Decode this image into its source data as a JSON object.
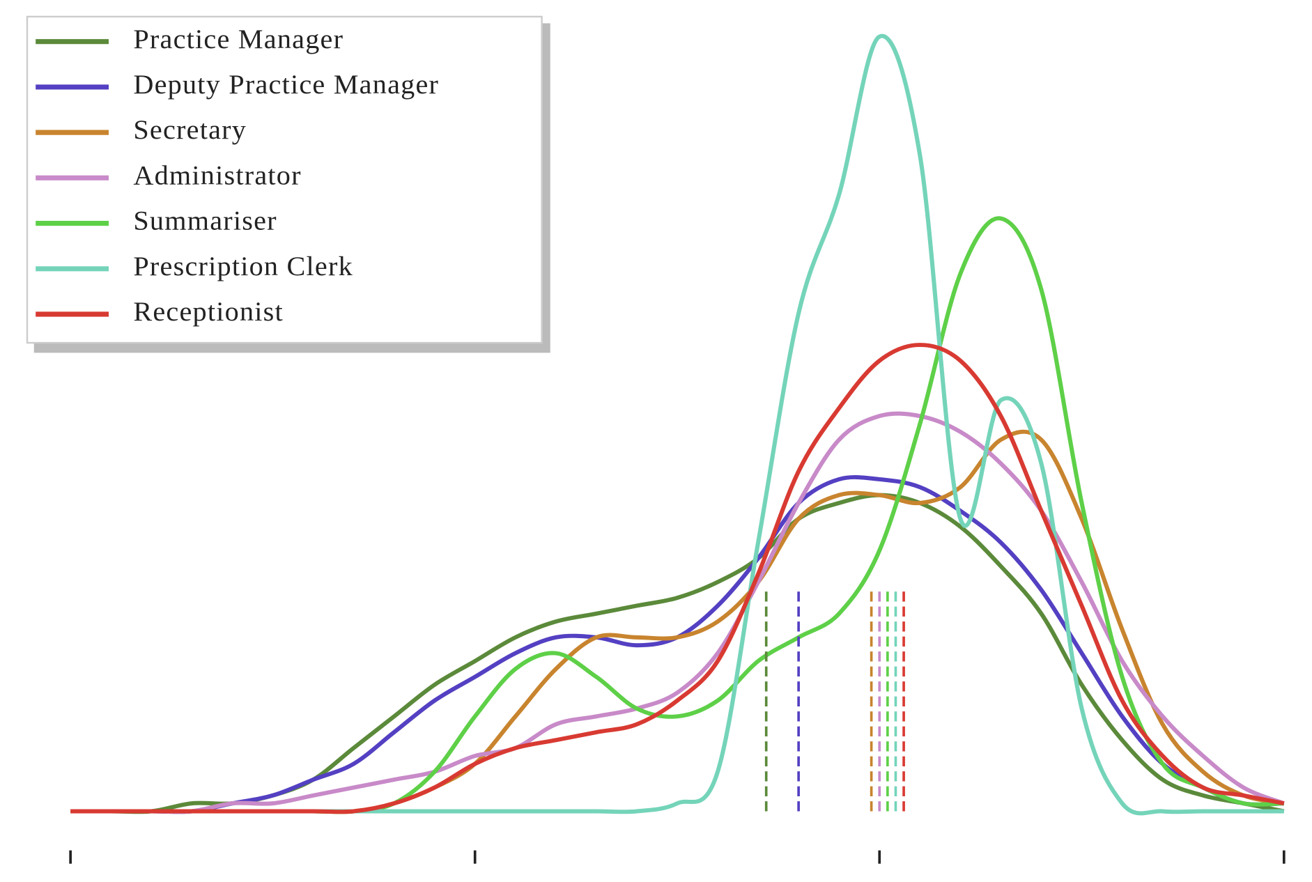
{
  "chart_data": {
    "type": "line",
    "x": [
      0,
      0.1,
      0.2,
      0.3,
      0.4,
      0.5,
      0.6,
      0.7,
      0.8,
      0.9,
      1,
      1.1,
      1.2,
      1.3,
      1.4,
      1.5,
      1.6,
      1.7,
      1.8,
      1.9,
      2,
      2.1,
      2.2,
      2.3,
      2.4,
      2.5,
      2.6,
      2.7,
      2.8,
      2.9,
      3
    ],
    "xlim": [
      0,
      3
    ],
    "xticks": [
      0,
      1,
      2,
      3
    ],
    "ylim": [
      0,
      1
    ],
    "legend": "upper-left",
    "series": [
      {
        "name": "Practice Manager",
        "color": "#5b8a3a",
        "mean": 1.72,
        "values": [
          0,
          0,
          0,
          0.01,
          0.01,
          0.02,
          0.04,
          0.08,
          0.12,
          0.16,
          0.19,
          0.22,
          0.24,
          0.25,
          0.26,
          0.27,
          0.29,
          0.32,
          0.37,
          0.39,
          0.4,
          0.39,
          0.36,
          0.31,
          0.25,
          0.16,
          0.09,
          0.04,
          0.02,
          0.01,
          0
        ]
      },
      {
        "name": "Deputy Practice Manager",
        "color": "#5340c2",
        "mean": 1.8,
        "values": [
          0,
          0,
          0,
          0,
          0.01,
          0.02,
          0.04,
          0.06,
          0.1,
          0.14,
          0.17,
          0.2,
          0.22,
          0.22,
          0.21,
          0.22,
          0.26,
          0.32,
          0.39,
          0.42,
          0.42,
          0.41,
          0.38,
          0.34,
          0.28,
          0.2,
          0.12,
          0.06,
          0.03,
          0.01,
          0.01
        ]
      },
      {
        "name": "Secretary",
        "color": "#c8842e",
        "mean": 1.98,
        "values": [
          0,
          0,
          0,
          0,
          0,
          0,
          0,
          0,
          0.01,
          0.03,
          0.06,
          0.12,
          0.18,
          0.22,
          0.22,
          0.22,
          0.24,
          0.29,
          0.37,
          0.4,
          0.4,
          0.39,
          0.41,
          0.47,
          0.47,
          0.37,
          0.23,
          0.11,
          0.05,
          0.02,
          0.01
        ]
      },
      {
        "name": "Administrator",
        "color": "#c88ac8",
        "mean": 2.0,
        "values": [
          0,
          0,
          0,
          0,
          0.01,
          0.01,
          0.02,
          0.03,
          0.04,
          0.05,
          0.07,
          0.08,
          0.11,
          0.12,
          0.13,
          0.15,
          0.2,
          0.29,
          0.39,
          0.47,
          0.5,
          0.5,
          0.48,
          0.44,
          0.38,
          0.29,
          0.19,
          0.12,
          0.07,
          0.03,
          0.01
        ]
      },
      {
        "name": "Summariser",
        "color": "#5ed048",
        "mean": 2.02,
        "values": [
          0,
          0,
          0,
          0,
          0,
          0,
          0,
          0,
          0.01,
          0.05,
          0.12,
          0.18,
          0.2,
          0.17,
          0.13,
          0.12,
          0.14,
          0.19,
          0.22,
          0.25,
          0.33,
          0.49,
          0.68,
          0.75,
          0.66,
          0.39,
          0.17,
          0.06,
          0.03,
          0.01,
          0.01
        ]
      },
      {
        "name": "Prescription Clerk",
        "color": "#74d4b9",
        "mean": 2.04,
        "values": [
          0,
          0,
          0,
          0,
          0,
          0,
          0,
          0,
          0,
          0,
          0,
          0,
          0,
          0,
          0,
          0.01,
          0.05,
          0.34,
          0.63,
          0.78,
          0.98,
          0.83,
          0.37,
          0.52,
          0.44,
          0.13,
          0.01,
          0,
          0,
          0,
          0
        ]
      },
      {
        "name": "Receptionist",
        "color": "#d83a32",
        "mean": 2.06,
        "values": [
          0,
          0,
          0,
          0,
          0,
          0,
          0,
          0,
          0.01,
          0.03,
          0.06,
          0.08,
          0.09,
          0.1,
          0.11,
          0.14,
          0.19,
          0.3,
          0.43,
          0.51,
          0.57,
          0.59,
          0.57,
          0.5,
          0.38,
          0.26,
          0.14,
          0.07,
          0.03,
          0.02,
          0.01
        ]
      }
    ]
  }
}
